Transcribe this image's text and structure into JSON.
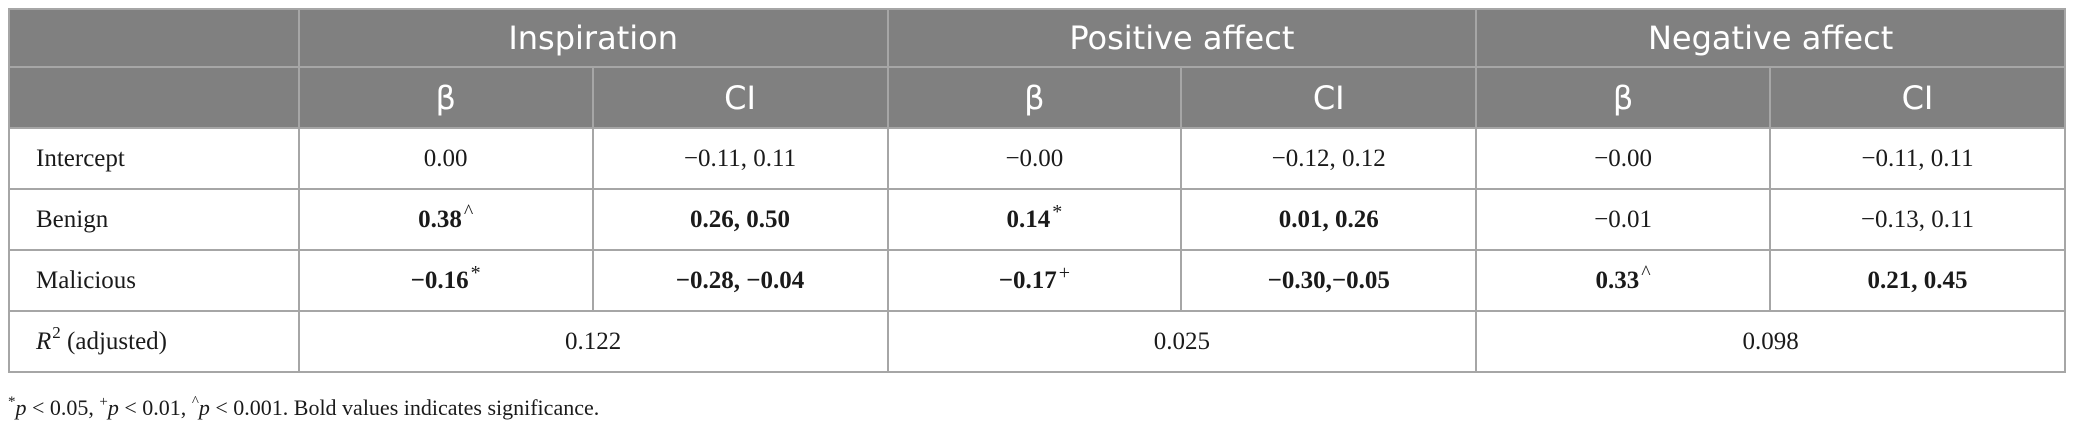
{
  "table": {
    "group_headers": [
      "Inspiration",
      "Positive affect",
      "Negative affect"
    ],
    "sub_headers": [
      "β",
      "CI",
      "β",
      "CI",
      "β",
      "CI"
    ],
    "rows": [
      {
        "label": "Intercept",
        "cells": [
          {
            "value": "0.00",
            "mark": ""
          },
          {
            "value": "−0.11, 0.11",
            "mark": ""
          },
          {
            "value": "−0.00",
            "mark": ""
          },
          {
            "value": "−0.12, 0.12",
            "mark": ""
          },
          {
            "value": "−0.00",
            "mark": ""
          },
          {
            "value": "−0.11, 0.11",
            "mark": ""
          }
        ]
      },
      {
        "label": "Benign",
        "cells": [
          {
            "value": "0.38",
            "mark": "^",
            "bold": true
          },
          {
            "value": "0.26, 0.50",
            "mark": "",
            "bold": true
          },
          {
            "value": "0.14",
            "mark": "*",
            "bold": true
          },
          {
            "value": "0.01, 0.26",
            "mark": "",
            "bold": true
          },
          {
            "value": "−0.01",
            "mark": ""
          },
          {
            "value": "−0.13, 0.11",
            "mark": ""
          }
        ]
      },
      {
        "label": "Malicious",
        "cells": [
          {
            "value": "−0.16",
            "mark": "*",
            "bold": true
          },
          {
            "value": "−0.28, −0.04",
            "mark": "",
            "bold": true
          },
          {
            "value": "−0.17",
            "mark": "+",
            "bold": true
          },
          {
            "value": "−0.30,−0.05",
            "mark": "",
            "bold": true
          },
          {
            "value": "0.33",
            "mark": "^",
            "bold": true
          },
          {
            "value": "0.21, 0.45",
            "mark": "",
            "bold": true
          }
        ]
      }
    ],
    "r2_row": {
      "label_symbol": "R",
      "label_exponent": "2",
      "label_suffix": " (adjusted)",
      "values": [
        "0.122",
        "0.025",
        "0.098"
      ]
    }
  },
  "footnote": {
    "m1": "*",
    "t1": "p",
    "r1": " < 0.05, ",
    "m2": "+",
    "t2": "p",
    "r2": " < 0.01, ",
    "m3": "^",
    "t3": "p",
    "r3": " < 0.001. Bold values indicates significance."
  }
}
